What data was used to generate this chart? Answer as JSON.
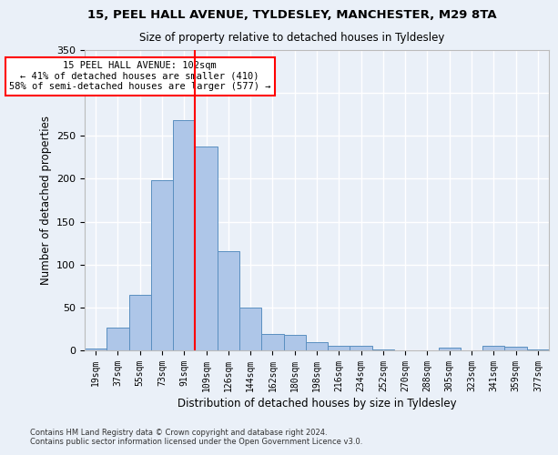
{
  "title1": "15, PEEL HALL AVENUE, TYLDESLEY, MANCHESTER, M29 8TA",
  "title2": "Size of property relative to detached houses in Tyldesley",
  "xlabel": "Distribution of detached houses by size in Tyldesley",
  "ylabel": "Number of detached properties",
  "footnote1": "Contains HM Land Registry data © Crown copyright and database right 2024.",
  "footnote2": "Contains public sector information licensed under the Open Government Licence v3.0.",
  "annotation_line1": "15 PEEL HALL AVENUE: 102sqm",
  "annotation_line2": "← 41% of detached houses are smaller (410)",
  "annotation_line3": "58% of semi-detached houses are larger (577) →",
  "bin_labels": [
    "19sqm",
    "37sqm",
    "55sqm",
    "73sqm",
    "91sqm",
    "109sqm",
    "126sqm",
    "144sqm",
    "162sqm",
    "180sqm",
    "198sqm",
    "216sqm",
    "234sqm",
    "252sqm",
    "270sqm",
    "288sqm",
    "305sqm",
    "323sqm",
    "341sqm",
    "359sqm",
    "377sqm"
  ],
  "bar_values": [
    2,
    27,
    65,
    198,
    268,
    238,
    116,
    50,
    19,
    18,
    10,
    5,
    5,
    1,
    0,
    0,
    3,
    0,
    5,
    4,
    1
  ],
  "bar_color": "#aec6e8",
  "bar_edge_color": "#5a8fc0",
  "vline_x": 4.5,
  "vline_color": "red",
  "annotation_box_color": "#ffffff",
  "annotation_box_edge": "red",
  "ylim": [
    0,
    350
  ],
  "yticks": [
    0,
    50,
    100,
    150,
    200,
    250,
    300,
    350
  ],
  "background_color": "#eaf0f8",
  "grid_color": "#ffffff",
  "figsize": [
    6.0,
    5.0
  ],
  "dpi": 100
}
